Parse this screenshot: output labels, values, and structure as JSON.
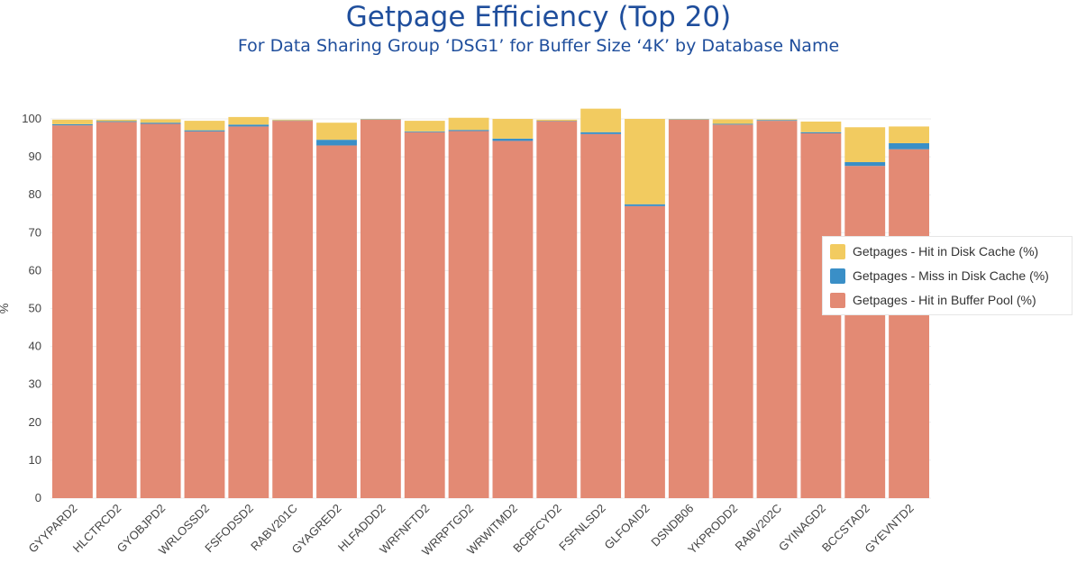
{
  "title": "Getpage Efficiency (Top 20)",
  "subtitle": "For Data Sharing Group ‘DSG1’ for Buffer Size ‘4K’ by Database Name",
  "colors": {
    "hit_buffer_pool": "#e38a74",
    "miss_disk_cache": "#3a8fc7",
    "hit_disk_cache": "#f2cb60",
    "grid": "#ececec"
  },
  "chart_data": {
    "type": "bar",
    "stacked": true,
    "ylabel": "%",
    "xlabel": "",
    "ylim": [
      0,
      100
    ],
    "yticks": [
      0,
      10,
      20,
      30,
      40,
      50,
      60,
      70,
      80,
      90,
      100
    ],
    "grid": true,
    "legend_position": "right",
    "categories": [
      "GYYPARD2",
      "HLCTRCD2",
      "GYOBJPD2",
      "WRLOSSD2",
      "FSFODSD2",
      "RABV201C",
      "GYAGRED2",
      "HLFADDD2",
      "WRFNFTD2",
      "WRRPTGD2",
      "WRWITMD2",
      "BCBFCYD2",
      "FSFNLSD2",
      "GLFOAID2",
      "DSNDB06",
      "YKPRODD2",
      "RABV202C",
      "GYINAGD2",
      "BCCSTAD2",
      "GYEVNTD2"
    ],
    "series": [
      {
        "name": "Getpages - Hit in Buffer Pool (%)",
        "color": "#e38a74",
        "values": [
          98.3,
          99.2,
          98.7,
          96.7,
          98.0,
          99.5,
          93.0,
          99.8,
          96.5,
          96.8,
          94.2,
          99.4,
          96.0,
          77.0,
          99.8,
          98.5,
          99.5,
          96.2,
          87.6,
          92.0
        ]
      },
      {
        "name": "Getpages - Miss in Disk Cache (%)",
        "color": "#3a8fc7",
        "values": [
          0.3,
          0.2,
          0.3,
          0.3,
          0.5,
          0.1,
          1.5,
          0.1,
          0.2,
          0.3,
          0.6,
          0.1,
          0.5,
          0.5,
          0.1,
          0.2,
          0.2,
          0.3,
          1.0,
          1.6
        ]
      },
      {
        "name": "Getpages - Hit in Disk Cache (%)",
        "color": "#f2cb60",
        "values": [
          1.2,
          0.4,
          0.9,
          2.5,
          2.0,
          0.2,
          4.5,
          0.1,
          2.8,
          3.2,
          5.2,
          0.3,
          6.2,
          22.5,
          0.1,
          1.2,
          0.2,
          2.8,
          9.2,
          4.4
        ]
      }
    ]
  },
  "legend": {
    "items": [
      {
        "label": "Getpages - Hit in Disk Cache (%)",
        "color": "#f2cb60"
      },
      {
        "label": "Getpages - Miss in Disk Cache (%)",
        "color": "#3a8fc7"
      },
      {
        "label": "Getpages - Hit in Buffer Pool (%)",
        "color": "#e38a74"
      }
    ]
  }
}
